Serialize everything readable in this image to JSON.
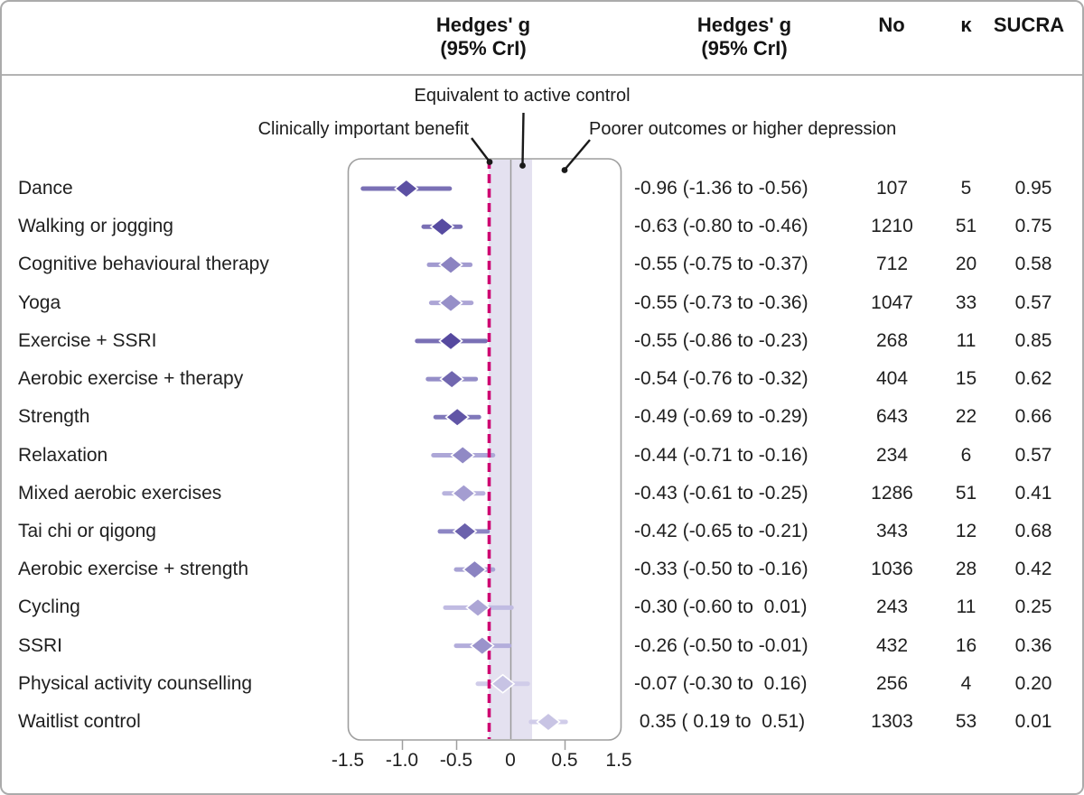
{
  "header": {
    "col_plot": {
      "line1": "Hedges' g",
      "line2": "(95% CrI)"
    },
    "col_text": {
      "line1": "Hedges' g",
      "line2": "(95% CrI)"
    },
    "col_no": "No",
    "col_kappa": "κ",
    "col_sucra": "SUCRA"
  },
  "annotations": {
    "equivalent": "Equivalent to active control",
    "clinical": "Clinically important benefit",
    "poorer": "Poorer outcomes or higher depression"
  },
  "colors": {
    "threshold_dashed_line": "#CE0071",
    "equivalence_band": "#E4E1F0",
    "zero_line": "#9A9A9A",
    "plot_box_border": "#9E9E9E",
    "frame_border": "#ABABAB",
    "pointer_line": "#1A1A1A",
    "text": "#1F1F1F"
  },
  "chart_data": {
    "type": "forest",
    "effect_measure": "Hedges' g (95% CrI)",
    "clinical_threshold": -0.2,
    "equivalence_band": [
      -0.2,
      0.2
    ],
    "axis_tick_labels": [
      "-1.5",
      "-1.0",
      "-0.5",
      "0",
      "0.5",
      "1.5"
    ],
    "rows": [
      {
        "label": "Dance",
        "g": -0.96,
        "lo": -1.36,
        "hi": -0.56,
        "ci_text": "-0.96 (-1.36 to -0.56)",
        "n": 107,
        "k": 5,
        "sucra": "0.95",
        "marker_color": "#5C50A3",
        "line_color": "#7A70B5"
      },
      {
        "label": "Walking or jogging",
        "g": -0.63,
        "lo": -0.8,
        "hi": -0.46,
        "ci_text": "-0.63 (-0.80 to -0.46)",
        "n": 1210,
        "k": 51,
        "sucra": "0.75",
        "marker_color": "#574BA1",
        "line_color": "#7A70B5"
      },
      {
        "label": "Cognitive behavioural therapy",
        "g": -0.55,
        "lo": -0.75,
        "hi": -0.37,
        "ci_text": "-0.55 (-0.75 to -0.37)",
        "n": 712,
        "k": 20,
        "sucra": "0.58",
        "marker_color": "#8B83C1",
        "line_color": "#A29BD0"
      },
      {
        "label": "Yoga",
        "g": -0.55,
        "lo": -0.73,
        "hi": -0.36,
        "ci_text": "-0.55 (-0.73 to -0.36)",
        "n": 1047,
        "k": 33,
        "sucra": "0.57",
        "marker_color": "#968FC8",
        "line_color": "#ACA5D5"
      },
      {
        "label": "Exercise + SSRI",
        "g": -0.55,
        "lo": -0.86,
        "hi": -0.23,
        "ci_text": "-0.55 (-0.86 to -0.23)",
        "n": 268,
        "k": 11,
        "sucra": "0.85",
        "marker_color": "#56499F",
        "line_color": "#7A70B5"
      },
      {
        "label": "Aerobic exercise + therapy",
        "g": -0.54,
        "lo": -0.76,
        "hi": -0.32,
        "ci_text": "-0.54 (-0.76 to -0.32)",
        "n": 404,
        "k": 15,
        "sucra": "0.62",
        "marker_color": "#7167AF",
        "line_color": "#958EC8"
      },
      {
        "label": "Strength",
        "g": -0.49,
        "lo": -0.69,
        "hi": -0.29,
        "ci_text": "-0.49 (-0.69 to -0.29)",
        "n": 643,
        "k": 22,
        "sucra": "0.66",
        "marker_color": "#6155A6",
        "line_color": "#8078BA"
      },
      {
        "label": "Relaxation",
        "g": -0.44,
        "lo": -0.71,
        "hi": -0.16,
        "ci_text": "-0.44 (-0.71 to -0.16)",
        "n": 234,
        "k": 6,
        "sucra": "0.57",
        "marker_color": "#9089C5",
        "line_color": "#ADA7D7"
      },
      {
        "label": "Mixed aerobic exercises",
        "g": -0.43,
        "lo": -0.61,
        "hi": -0.25,
        "ci_text": "-0.43 (-0.61 to -0.25)",
        "n": 1286,
        "k": 51,
        "sucra": "0.41",
        "marker_color": "#A49DD1",
        "line_color": "#B8B3DD"
      },
      {
        "label": "Tai chi or qigong",
        "g": -0.42,
        "lo": -0.65,
        "hi": -0.21,
        "ci_text": "-0.42 (-0.65 to -0.21)",
        "n": 343,
        "k": 12,
        "sucra": "0.68",
        "marker_color": "#6B61AC",
        "line_color": "#8D86C4"
      },
      {
        "label": "Aerobic exercise + strength",
        "g": -0.33,
        "lo": -0.5,
        "hi": -0.16,
        "ci_text": "-0.33 (-0.50 to -0.16)",
        "n": 1036,
        "k": 28,
        "sucra": "0.42",
        "marker_color": "#8B83C1",
        "line_color": "#A8A2D4"
      },
      {
        "label": "Cycling",
        "g": -0.3,
        "lo": -0.6,
        "hi": 0.01,
        "ci_text": "-0.30 (-0.60 to  0.01)",
        "n": 243,
        "k": 11,
        "sucra": "0.25",
        "marker_color": "#ACA5D5",
        "line_color": "#C0BBE2"
      },
      {
        "label": "SSRI",
        "g": -0.26,
        "lo": -0.5,
        "hi": -0.01,
        "ci_text": "-0.26 (-0.50 to -0.01)",
        "n": 432,
        "k": 16,
        "sucra": "0.36",
        "marker_color": "#9A93CB",
        "line_color": "#B3ADDB"
      },
      {
        "label": "Physical activity counselling",
        "g": -0.07,
        "lo": -0.3,
        "hi": 0.16,
        "ci_text": "-0.07 (-0.30 to  0.16)",
        "n": 256,
        "k": 4,
        "sucra": "0.20",
        "marker_color": "#C7C3E4",
        "line_color": "#D0CCE9"
      },
      {
        "label": "Waitlist control",
        "g": 0.35,
        "lo": 0.19,
        "hi": 0.51,
        "ci_text": " 0.35 ( 0.19 to  0.51)",
        "n": 1303,
        "k": 53,
        "sucra": "0.01",
        "marker_color": "#C8C4E4",
        "line_color": "#D0CCE9"
      }
    ]
  }
}
